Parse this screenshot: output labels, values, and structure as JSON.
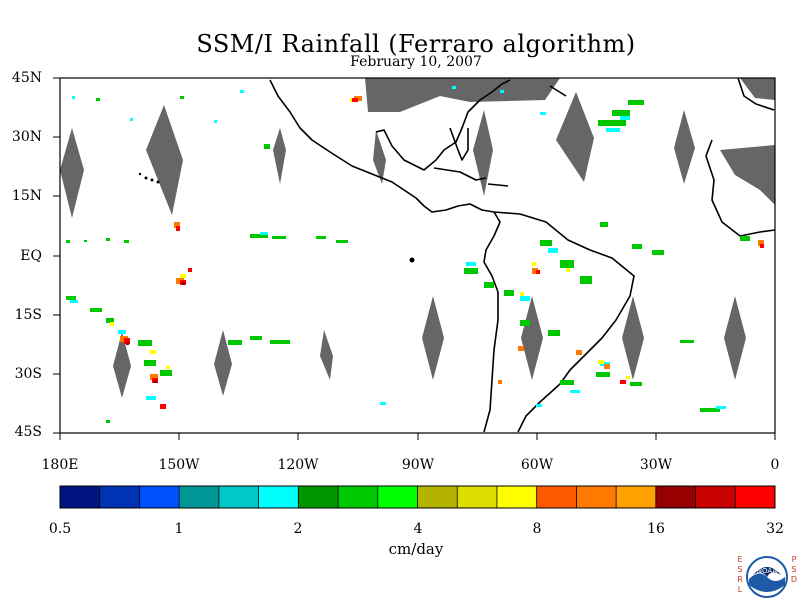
{
  "title": "SSM/I Rainfall (Ferraro algorithm)",
  "subtitle": "February 10, 2007",
  "y_axis_labels": [
    "45N",
    "30N",
    "15N",
    "EQ",
    "15S",
    "30S",
    "45S"
  ],
  "x_axis_labels": [
    "180E",
    "150W",
    "120W",
    "90W",
    "60W",
    "30W",
    "0"
  ],
  "colorbar": {
    "tick_labels": [
      "0.5",
      "1",
      "2",
      "4",
      "8",
      "16",
      "32"
    ],
    "units": "cm/day",
    "colors": [
      "#001480",
      "#0032b4",
      "#0050ff",
      "#009696",
      "#00c8c8",
      "#00ffff",
      "#009600",
      "#00c800",
      "#00ff00",
      "#b4b400",
      "#dcdc00",
      "#ffff00",
      "#ff5a00",
      "#ff7800",
      "#ffa000",
      "#960000",
      "#c80000",
      "#ff0000"
    ]
  },
  "map": {
    "lat_range": [
      -45,
      45
    ],
    "lon_range": [
      -180,
      0
    ],
    "land_color": "#000000",
    "no_data_color": "#666666"
  },
  "logo": {
    "left_letters": [
      "E",
      "S",
      "R",
      "L"
    ],
    "right_letters": [
      "P",
      "S",
      "D"
    ],
    "text": "NOAA"
  }
}
